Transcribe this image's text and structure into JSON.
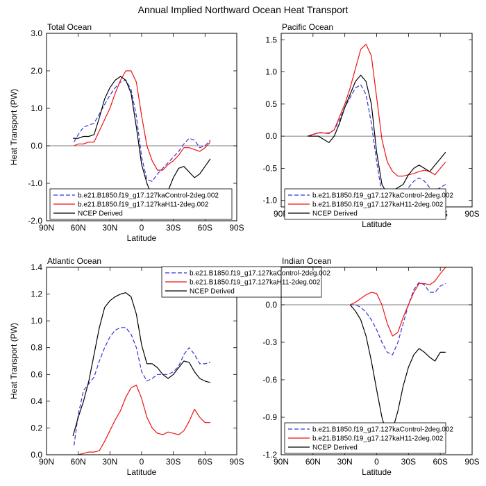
{
  "figure": {
    "title": "Annual Implied Northward Ocean Heat Transport"
  },
  "legend_labels": [
    "b.e21.B1850.f19_g17.127kaControl-2deg.002",
    "b.e21.B1850.f19_g17.127kaH11-2deg.002",
    "NCEP Derived"
  ],
  "series_colors": [
    "#3333dd",
    "#ee1111",
    "#000000"
  ],
  "chart_data": [
    {
      "type": "line",
      "title": "Total Ocean",
      "xlabel": "Latitude",
      "ylabel": "Heat Transport (PW)",
      "xlim": [
        90,
        -90
      ],
      "x_ticks": [
        90,
        60,
        30,
        0,
        -30,
        -60,
        -90
      ],
      "x_tick_labels": [
        "90N",
        "60N",
        "30N",
        "0",
        "30S",
        "60S",
        "90S"
      ],
      "ylim": [
        -2.0,
        3.0
      ],
      "y_ticks": [
        -2.0,
        -1.0,
        0.0,
        1.0,
        2.0,
        3.0
      ],
      "y_tick_labels": [
        "-2.0",
        "-1.0",
        "0.0",
        "1.0",
        "2.0",
        "3.0"
      ],
      "legend_position": "bottom-left",
      "series": [
        {
          "name": "b.e21.B1850.f19_g17.127kaControl-2deg.002",
          "style": "dashed",
          "x": [
            64,
            60,
            55,
            50,
            45,
            40,
            35,
            30,
            25,
            20,
            15,
            10,
            5,
            0,
            -5,
            -10,
            -15,
            -20,
            -25,
            -30,
            -35,
            -40,
            -45,
            -50,
            -55,
            -60,
            -65
          ],
          "y": [
            0.1,
            0.3,
            0.5,
            0.55,
            0.6,
            0.85,
            1.1,
            1.35,
            1.55,
            1.7,
            1.75,
            1.5,
            0.8,
            -0.3,
            -0.9,
            -0.95,
            -0.75,
            -0.6,
            -0.45,
            -0.3,
            -0.15,
            0.05,
            0.2,
            0.15,
            -0.05,
            0.0,
            0.15
          ]
        },
        {
          "name": "b.e21.B1850.f19_g17.127kaH11-2deg.002",
          "style": "solid",
          "x": [
            64,
            60,
            55,
            50,
            45,
            40,
            35,
            30,
            25,
            20,
            15,
            10,
            5,
            0,
            -5,
            -10,
            -15,
            -20,
            -25,
            -30,
            -35,
            -40,
            -45,
            -50,
            -55,
            -60,
            -65
          ],
          "y": [
            0.0,
            0.05,
            0.05,
            0.1,
            0.1,
            0.4,
            0.7,
            1.0,
            1.4,
            1.75,
            2.0,
            2.0,
            1.7,
            0.8,
            0.0,
            -0.4,
            -0.65,
            -0.65,
            -0.5,
            -0.4,
            -0.25,
            -0.05,
            -0.05,
            -0.1,
            -0.15,
            -0.05,
            0.1
          ]
        },
        {
          "name": "NCEP Derived",
          "style": "solid",
          "x": [
            65,
            60,
            55,
            50,
            45,
            40,
            35,
            30,
            25,
            20,
            15,
            10,
            5,
            0,
            -5,
            -10,
            -15,
            -20,
            -25,
            -30,
            -35,
            -40,
            -45,
            -50,
            -55,
            -60,
            -65
          ],
          "y": [
            0.2,
            0.2,
            0.25,
            0.25,
            0.3,
            0.75,
            1.25,
            1.55,
            1.75,
            1.85,
            1.75,
            1.4,
            0.5,
            -0.5,
            -1.0,
            -1.35,
            -1.75,
            -1.55,
            -1.2,
            -0.85,
            -0.6,
            -0.55,
            -0.7,
            -0.85,
            -0.75,
            -0.55,
            -0.35
          ]
        }
      ]
    },
    {
      "type": "line",
      "title": "Pacific Ocean",
      "xlabel": "Latitude",
      "ylabel": "",
      "xlim": [
        90,
        -90
      ],
      "x_ticks": [
        90,
        60,
        30,
        0,
        -30,
        -60,
        -90
      ],
      "x_tick_labels": [
        "90N",
        "60N",
        "30N",
        "0",
        "30S",
        "60S",
        "90S"
      ],
      "ylim": [
        -1.1,
        1.6
      ],
      "y_ticks": [
        -1.0,
        -0.5,
        0.0,
        0.5,
        1.0,
        1.5
      ],
      "y_tick_labels": [
        "-1.0",
        "-0.5",
        "0.0",
        "0.5",
        "1.0",
        "1.5"
      ],
      "legend_position": "bottom-right",
      "series": [
        {
          "name": "b.e21.B1850.f19_g17.127kaControl-2deg.002",
          "style": "dashed",
          "x": [
            65,
            60,
            55,
            50,
            45,
            40,
            35,
            30,
            25,
            20,
            15,
            10,
            5,
            0,
            -5,
            -10,
            -15,
            -20,
            -25,
            -30,
            -35,
            -40,
            -45,
            -50,
            -55,
            -60,
            -65
          ],
          "y": [
            0.0,
            0.02,
            0.06,
            0.05,
            0.05,
            0.1,
            0.25,
            0.45,
            0.6,
            0.75,
            0.8,
            0.65,
            0.2,
            -0.4,
            -0.9,
            -1.1,
            -1.1,
            -1.0,
            -0.9,
            -0.8,
            -0.7,
            -0.65,
            -0.7,
            -0.8,
            -0.85,
            -0.8,
            -0.75
          ]
        },
        {
          "name": "b.e21.B1850.f19_g17.127kaH11-2deg.002",
          "style": "solid",
          "x": [
            65,
            60,
            55,
            50,
            45,
            40,
            35,
            30,
            25,
            20,
            15,
            10,
            5,
            0,
            -5,
            -10,
            -15,
            -20,
            -25,
            -30,
            -35,
            -40,
            -45,
            -50,
            -55,
            -60,
            -65
          ],
          "y": [
            0.0,
            0.03,
            0.05,
            0.05,
            0.04,
            0.1,
            0.3,
            0.5,
            0.75,
            1.05,
            1.35,
            1.43,
            1.25,
            0.6,
            -0.05,
            -0.4,
            -0.55,
            -0.62,
            -0.62,
            -0.6,
            -0.58,
            -0.55,
            -0.53,
            -0.55,
            -0.6,
            -0.5,
            -0.4
          ]
        },
        {
          "name": "NCEP Derived",
          "style": "solid",
          "x": [
            65,
            60,
            55,
            50,
            45,
            40,
            35,
            30,
            25,
            20,
            15,
            10,
            5,
            0,
            -5,
            -10,
            -15,
            -20,
            -25,
            -30,
            -35,
            -40,
            -45,
            -50,
            -55,
            -60,
            -65
          ],
          "y": [
            0.0,
            0.0,
            0.0,
            -0.05,
            -0.1,
            0.0,
            0.2,
            0.45,
            0.65,
            0.85,
            0.95,
            0.85,
            0.5,
            -0.25,
            -0.75,
            -0.9,
            -0.85,
            -0.8,
            -0.75,
            -0.6,
            -0.5,
            -0.45,
            -0.5,
            -0.55,
            -0.45,
            -0.35,
            -0.25
          ]
        }
      ]
    },
    {
      "type": "line",
      "title": "Atlantic Ocean",
      "xlabel": "Latitude",
      "ylabel": "Heat Transport (PW)",
      "xlim": [
        90,
        -90
      ],
      "x_ticks": [
        90,
        60,
        30,
        0,
        -30,
        -60,
        -90
      ],
      "x_tick_labels": [
        "90N",
        "60N",
        "30N",
        "0",
        "30S",
        "60S",
        "90S"
      ],
      "ylim": [
        0.0,
        1.4
      ],
      "y_ticks": [
        0.0,
        0.2,
        0.4,
        0.6,
        0.8,
        1.0,
        1.2,
        1.4
      ],
      "y_tick_labels": [
        "0.0",
        "0.2",
        "0.4",
        "0.6",
        "0.8",
        "1.0",
        "1.2",
        "1.4"
      ],
      "legend_position": "top-center",
      "series": [
        {
          "name": "b.e21.B1850.f19_g17.127kaControl-2deg.002",
          "style": "dashed",
          "x": [
            64,
            60,
            55,
            50,
            45,
            40,
            35,
            30,
            25,
            20,
            15,
            10,
            5,
            0,
            -5,
            -10,
            -15,
            -20,
            -25,
            -30,
            -35,
            -40,
            -45,
            -50,
            -55,
            -60,
            -65
          ],
          "y": [
            0.07,
            0.3,
            0.48,
            0.53,
            0.58,
            0.7,
            0.8,
            0.88,
            0.93,
            0.95,
            0.95,
            0.9,
            0.8,
            0.62,
            0.55,
            0.57,
            0.6,
            0.6,
            0.6,
            0.62,
            0.66,
            0.75,
            0.8,
            0.75,
            0.68,
            0.68,
            0.69
          ]
        },
        {
          "name": "b.e21.B1850.f19_g17.127kaH11-2deg.002",
          "style": "solid",
          "x": [
            60,
            55,
            50,
            45,
            40,
            35,
            30,
            25,
            20,
            15,
            10,
            5,
            0,
            -5,
            -10,
            -15,
            -20,
            -25,
            -30,
            -35,
            -40,
            -45,
            -50,
            -55,
            -60,
            -65
          ],
          "y": [
            0.0,
            0.01,
            0.02,
            0.02,
            0.03,
            0.1,
            0.18,
            0.26,
            0.33,
            0.43,
            0.5,
            0.52,
            0.42,
            0.28,
            0.2,
            0.16,
            0.15,
            0.17,
            0.16,
            0.15,
            0.18,
            0.25,
            0.34,
            0.28,
            0.24,
            0.24
          ]
        },
        {
          "name": "NCEP Derived",
          "style": "solid",
          "x": [
            65,
            60,
            55,
            50,
            45,
            40,
            35,
            30,
            25,
            20,
            15,
            10,
            5,
            0,
            -5,
            -10,
            -15,
            -20,
            -25,
            -30,
            -35,
            -40,
            -45,
            -50,
            -55,
            -60,
            -65
          ],
          "y": [
            0.14,
            0.28,
            0.4,
            0.55,
            0.75,
            0.95,
            1.1,
            1.15,
            1.18,
            1.2,
            1.21,
            1.18,
            1.05,
            0.82,
            0.68,
            0.68,
            0.65,
            0.6,
            0.57,
            0.6,
            0.65,
            0.7,
            0.69,
            0.62,
            0.57,
            0.55,
            0.54
          ]
        }
      ]
    },
    {
      "type": "line",
      "title": "Indian Ocean",
      "xlabel": "Latitude",
      "ylabel": "",
      "xlim": [
        90,
        -90
      ],
      "x_ticks": [
        90,
        60,
        30,
        0,
        -30,
        -60,
        -90
      ],
      "x_tick_labels": [
        "90N",
        "60N",
        "30N",
        "0",
        "30S",
        "60S",
        "90S"
      ],
      "ylim": [
        -1.2,
        0.3
      ],
      "y_ticks": [
        -1.2,
        -0.9,
        -0.6,
        -0.3,
        0.0
      ],
      "y_tick_labels": [
        "-1.2",
        "-0.9",
        "-0.6",
        "-0.3",
        "0.0"
      ],
      "legend_position": "bottom-center",
      "series": [
        {
          "name": "b.e21.B1850.f19_g17.127kaControl-2deg.002",
          "style": "dashed",
          "x": [
            25,
            20,
            15,
            10,
            5,
            0,
            -5,
            -10,
            -15,
            -20,
            -25,
            -30,
            -35,
            -40,
            -45,
            -50,
            -55,
            -60,
            -65
          ],
          "y": [
            0.0,
            0.0,
            -0.02,
            -0.06,
            -0.12,
            -0.2,
            -0.3,
            -0.38,
            -0.4,
            -0.3,
            -0.15,
            0.0,
            0.12,
            0.18,
            0.16,
            0.1,
            0.1,
            0.15,
            0.17
          ]
        },
        {
          "name": "b.e21.B1850.f19_g17.127kaH11-2deg.002",
          "style": "solid",
          "x": [
            25,
            20,
            15,
            10,
            5,
            0,
            -5,
            -10,
            -15,
            -20,
            -25,
            -30,
            -35,
            -40,
            -45,
            -50,
            -55,
            -60,
            -65
          ],
          "y": [
            0.0,
            0.02,
            0.05,
            0.08,
            0.1,
            0.09,
            0.0,
            -0.15,
            -0.25,
            -0.22,
            -0.1,
            0.0,
            0.1,
            0.17,
            0.17,
            0.16,
            0.19,
            0.25,
            0.3
          ]
        },
        {
          "name": "NCEP Derived",
          "style": "solid",
          "x": [
            25,
            20,
            15,
            10,
            5,
            0,
            -5,
            -10,
            -15,
            -20,
            -25,
            -30,
            -35,
            -40,
            -45,
            -50,
            -55,
            -60,
            -65
          ],
          "y": [
            0.0,
            -0.05,
            -0.12,
            -0.25,
            -0.45,
            -0.68,
            -0.9,
            -1.05,
            -1.0,
            -0.85,
            -0.65,
            -0.5,
            -0.4,
            -0.35,
            -0.38,
            -0.42,
            -0.45,
            -0.38,
            -0.38
          ]
        }
      ]
    }
  ]
}
